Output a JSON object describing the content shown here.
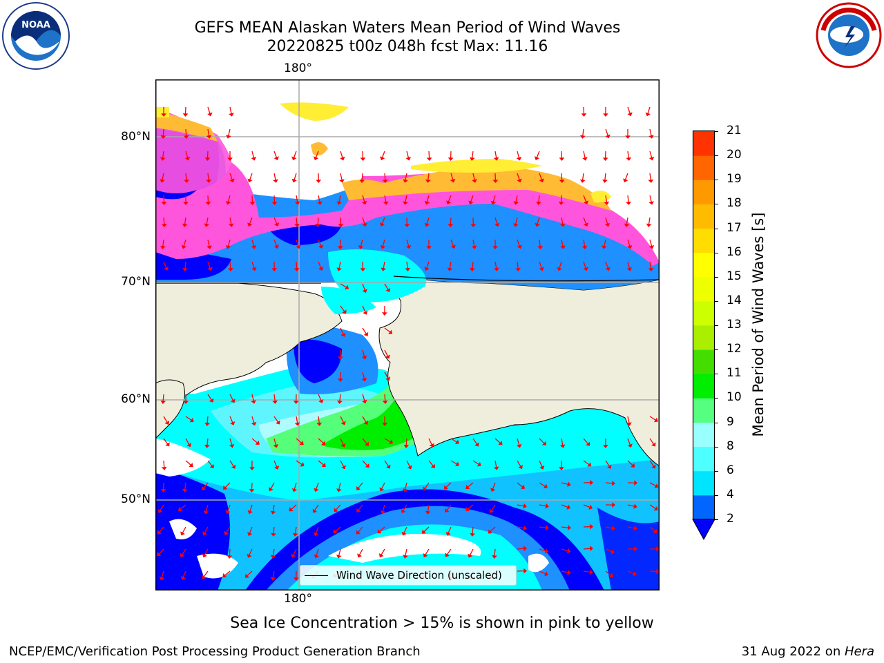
{
  "title": {
    "line1": "GEFS MEAN Alaskan Waters Mean Period of Wind Waves",
    "line2": "20220825 t00z 048h fcst   Max: 11.16"
  },
  "logos": {
    "left": "noaa-logo",
    "right": "nws-logo"
  },
  "map": {
    "lon_label_top": "180°",
    "lon_label_bottom": "180°",
    "lat_labels": [
      "80°N",
      "70°N",
      "60°N",
      "50°N"
    ],
    "legend": "Wind Wave Direction (unscaled)",
    "colors": {
      "land": "#efeedc",
      "ocean_low": "#0000ff",
      "ocean_2": "#1e90ff",
      "ocean_4": "#00ffff",
      "ocean_6": "#5ff5ff",
      "ocean_8": "#aefcff",
      "ocean_9": "#55ff7a",
      "ocean_10": "#00ee00",
      "ice_pink": "#ff55dd",
      "ice_orange": "#ffbb33",
      "ice_yellow": "#ffee33",
      "arrow": "#ff0000"
    }
  },
  "colorbar": {
    "label": "Mean Period of Wind Waves [s]",
    "ticks": [
      "2",
      "4",
      "6",
      "8",
      "9",
      "10",
      "11",
      "12",
      "13",
      "14",
      "15",
      "16",
      "17",
      "18",
      "19",
      "20",
      "21"
    ],
    "colors": [
      "#0066ff",
      "#00e5ff",
      "#4dffff",
      "#99ffff",
      "#55ff80",
      "#00ee00",
      "#44dd00",
      "#aaee00",
      "#ccff00",
      "#eeff00",
      "#ffff00",
      "#ffdd00",
      "#ffbb00",
      "#ff9900",
      "#ff6600",
      "#ff3300",
      "#ff0000"
    ],
    "extend_color": "#0000ff"
  },
  "subtitle": "Sea Ice Concentration > 15% is shown in pink to yellow",
  "footer": {
    "left": "NCEP/EMC/Verification Post Processing Product Generation Branch",
    "right_date": "31 Aug 2022 on ",
    "right_host": "Hera"
  }
}
